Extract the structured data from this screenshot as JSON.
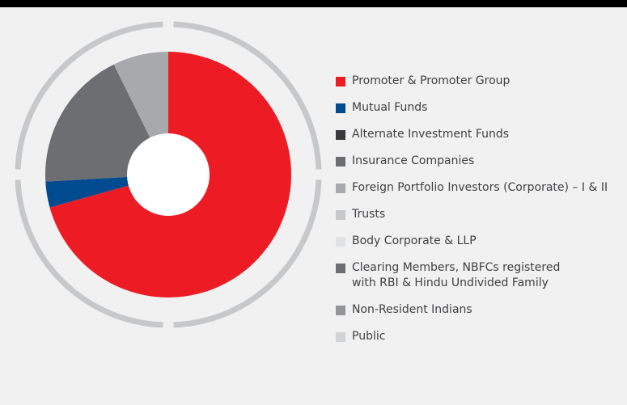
{
  "chart_data": {
    "type": "donut",
    "categories": [
      "Promoter & Promoter Group",
      "Mutual Funds",
      "Alternate Investment Funds",
      "Insurance Companies",
      "Foreign Portfolio Investors (Corporate) – I & II",
      "Trusts",
      "Body Corporate & LLP",
      "Clearing Members, NBFCs registered\nwith RBI & Hindu Undivided Family",
      "Non-Resident Indians",
      "Public"
    ],
    "values": [
      70.7,
      3.4,
      0,
      18.6,
      7.3,
      0,
      0,
      0,
      0,
      0
    ],
    "colors": [
      "#ed1c24",
      "#004a8f",
      "#3a3a3c",
      "#6d6e71",
      "#a7a9ac",
      "#c7c8ca",
      "#e0e1e2",
      "#6d6e71",
      "#939598",
      "#d1d3d4"
    ],
    "legend": "right"
  }
}
